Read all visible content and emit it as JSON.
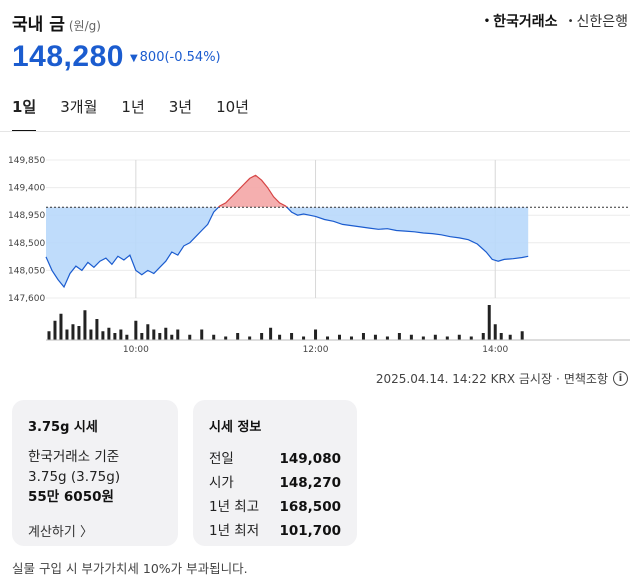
{
  "header": {
    "title": "국내 금",
    "unit": "(원/g)",
    "sources": [
      {
        "label": "한국거래소",
        "active": true
      },
      {
        "label": "신한은행",
        "active": false
      }
    ]
  },
  "price": {
    "value": "148,280",
    "change_arrow": "▼",
    "change": "800",
    "change_pct": "(-0.54%)",
    "color": "#1b5ccf"
  },
  "tabs": [
    "1일",
    "3개월",
    "1년",
    "3년",
    "10년"
  ],
  "active_tab": "1일",
  "chart_data": {
    "type": "area",
    "baseline": 149080,
    "ylim": [
      147600,
      149850
    ],
    "y_ticks": [
      "149,850",
      "149,400",
      "148,950",
      "148,500",
      "148,050",
      "147,600"
    ],
    "x_ticks": [
      "10:00",
      "12:00",
      "14:00"
    ],
    "x_domain": [
      "09:00",
      "15:30"
    ],
    "above_color": "#f4a6a6",
    "below_color": "#b8d8fb",
    "line_color": "#1b5ccf",
    "series": [
      {
        "values": [
          [
            "09:00",
            148270
          ],
          [
            "09:04",
            148050
          ],
          [
            "09:08",
            147900
          ],
          [
            "09:12",
            147780
          ],
          [
            "09:16",
            148000
          ],
          [
            "09:20",
            148120
          ],
          [
            "09:24",
            148050
          ],
          [
            "09:28",
            148180
          ],
          [
            "09:32",
            148100
          ],
          [
            "09:36",
            148200
          ],
          [
            "09:40",
            148250
          ],
          [
            "09:44",
            148150
          ],
          [
            "09:48",
            148280
          ],
          [
            "09:52",
            148220
          ],
          [
            "09:56",
            148300
          ],
          [
            "10:00",
            148050
          ],
          [
            "10:04",
            147980
          ],
          [
            "10:08",
            148050
          ],
          [
            "10:12",
            148000
          ],
          [
            "10:16",
            148100
          ],
          [
            "10:20",
            148200
          ],
          [
            "10:24",
            148350
          ],
          [
            "10:28",
            148300
          ],
          [
            "10:32",
            148450
          ],
          [
            "10:36",
            148500
          ],
          [
            "10:40",
            148600
          ],
          [
            "10:44",
            148700
          ],
          [
            "10:48",
            148800
          ],
          [
            "10:52",
            149000
          ],
          [
            "10:56",
            149100
          ],
          [
            "11:00",
            149150
          ],
          [
            "11:04",
            149250
          ],
          [
            "11:08",
            149350
          ],
          [
            "11:12",
            149450
          ],
          [
            "11:16",
            149550
          ],
          [
            "11:20",
            149600
          ],
          [
            "11:24",
            149520
          ],
          [
            "11:28",
            149400
          ],
          [
            "11:32",
            149250
          ],
          [
            "11:36",
            149150
          ],
          [
            "11:40",
            149100
          ],
          [
            "11:44",
            149000
          ],
          [
            "11:48",
            148950
          ],
          [
            "11:52",
            148970
          ],
          [
            "11:56",
            148950
          ],
          [
            "12:00",
            148930
          ],
          [
            "12:06",
            148880
          ],
          [
            "12:12",
            148850
          ],
          [
            "12:18",
            148800
          ],
          [
            "12:24",
            148780
          ],
          [
            "12:30",
            148760
          ],
          [
            "12:36",
            148740
          ],
          [
            "12:42",
            148720
          ],
          [
            "12:48",
            148730
          ],
          [
            "12:54",
            148700
          ],
          [
            "13:00",
            148690
          ],
          [
            "13:06",
            148680
          ],
          [
            "13:12",
            148660
          ],
          [
            "13:18",
            148650
          ],
          [
            "13:24",
            148630
          ],
          [
            "13:30",
            148600
          ],
          [
            "13:36",
            148580
          ],
          [
            "13:42",
            148550
          ],
          [
            "13:48",
            148480
          ],
          [
            "13:54",
            148350
          ],
          [
            "13:58",
            148230
          ],
          [
            "14:02",
            148200
          ],
          [
            "14:06",
            148230
          ],
          [
            "14:12",
            148240
          ],
          [
            "14:18",
            148260
          ],
          [
            "14:22",
            148280
          ]
        ]
      }
    ],
    "volumes": [
      [
        "09:02",
        0.25
      ],
      [
        "09:06",
        0.55
      ],
      [
        "09:10",
        0.75
      ],
      [
        "09:14",
        0.3
      ],
      [
        "09:18",
        0.45
      ],
      [
        "09:22",
        0.4
      ],
      [
        "09:26",
        0.85
      ],
      [
        "09:30",
        0.3
      ],
      [
        "09:34",
        0.6
      ],
      [
        "09:38",
        0.25
      ],
      [
        "09:42",
        0.35
      ],
      [
        "09:46",
        0.2
      ],
      [
        "09:50",
        0.3
      ],
      [
        "09:54",
        0.15
      ],
      [
        "10:00",
        0.55
      ],
      [
        "10:04",
        0.2
      ],
      [
        "10:08",
        0.45
      ],
      [
        "10:12",
        0.3
      ],
      [
        "10:16",
        0.2
      ],
      [
        "10:20",
        0.35
      ],
      [
        "10:24",
        0.15
      ],
      [
        "10:28",
        0.3
      ],
      [
        "10:36",
        0.15
      ],
      [
        "10:44",
        0.3
      ],
      [
        "10:52",
        0.15
      ],
      [
        "11:00",
        0.1
      ],
      [
        "11:08",
        0.2
      ],
      [
        "11:16",
        0.1
      ],
      [
        "11:24",
        0.2
      ],
      [
        "11:30",
        0.35
      ],
      [
        "11:36",
        0.15
      ],
      [
        "11:44",
        0.2
      ],
      [
        "11:52",
        0.1
      ],
      [
        "12:00",
        0.3
      ],
      [
        "12:08",
        0.1
      ],
      [
        "12:16",
        0.15
      ],
      [
        "12:24",
        0.1
      ],
      [
        "12:32",
        0.2
      ],
      [
        "12:40",
        0.15
      ],
      [
        "12:48",
        0.1
      ],
      [
        "12:56",
        0.2
      ],
      [
        "13:04",
        0.15
      ],
      [
        "13:12",
        0.1
      ],
      [
        "13:20",
        0.15
      ],
      [
        "13:28",
        0.1
      ],
      [
        "13:36",
        0.15
      ],
      [
        "13:44",
        0.1
      ],
      [
        "13:52",
        0.2
      ],
      [
        "13:56",
        1.0
      ],
      [
        "14:00",
        0.45
      ],
      [
        "14:04",
        0.2
      ],
      [
        "14:10",
        0.15
      ],
      [
        "14:18",
        0.25
      ]
    ]
  },
  "meta": {
    "timestamp": "2025.04.14. 14:22 KRX 금시장",
    "separator": "·",
    "disclaimer": "면책조항",
    "info_icon": "info-icon"
  },
  "card_spot": {
    "title": "3.75g 시세",
    "basis": "한국거래소 기준",
    "weight": "3.75g (3.75g)",
    "amount": "55만 6050원",
    "calc_label": "계산하기"
  },
  "card_info": {
    "title": "시세 정보",
    "rows": [
      {
        "label": "전일",
        "value": "149,080"
      },
      {
        "label": "시가",
        "value": "148,270"
      },
      {
        "label": "1년 최고",
        "value": "168,500"
      },
      {
        "label": "1년 최저",
        "value": "101,700"
      }
    ]
  },
  "footnote": "실물 구입 시 부가가치세 10%가 부과됩니다."
}
